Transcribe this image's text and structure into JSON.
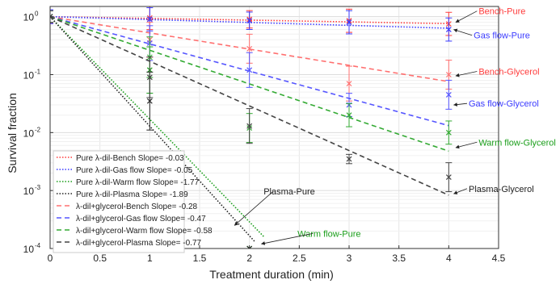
{
  "chart_data": {
    "type": "line",
    "xlabel": "Treatment duration (min)",
    "ylabel": "Survival fraction",
    "xlim": [
      0,
      4.5
    ],
    "ylim": [
      0.0001,
      1.5
    ],
    "yscale": "log",
    "grid": true,
    "legend_position": "lower-left",
    "x_ticks": [
      {
        "v": 0,
        "label": "0"
      },
      {
        "v": 0.5,
        "label": "0.5"
      },
      {
        "v": 1,
        "label": "1"
      },
      {
        "v": 1.5,
        "label": "1.5"
      },
      {
        "v": 2,
        "label": "2"
      },
      {
        "v": 2.5,
        "label": "2.5"
      },
      {
        "v": 3,
        "label": "3"
      },
      {
        "v": 3.5,
        "label": "3.5"
      },
      {
        "v": 4,
        "label": "4"
      },
      {
        "v": 4.5,
        "label": "4.5"
      }
    ],
    "y_ticks": [
      {
        "v": 1,
        "base": "10",
        "exp": "0"
      },
      {
        "v": 0.1,
        "base": "10",
        "exp": "-1"
      },
      {
        "v": 0.01,
        "base": "10",
        "exp": "-2"
      },
      {
        "v": 0.001,
        "base": "10",
        "exp": "-3"
      },
      {
        "v": 0.0001,
        "base": "10",
        "exp": "-4"
      }
    ],
    "series": [
      {
        "name": "Pure λ-dil-Bench Slope= -0.03",
        "color": "#ff3b3b",
        "dash": "dotted",
        "slope": -0.03,
        "x_end": 4,
        "points": [
          {
            "x": 0,
            "y": 1.0,
            "err": 0.12
          },
          {
            "x": 1,
            "y": 0.95,
            "err": 0.2
          },
          {
            "x": 2,
            "y": 0.9,
            "err": 0.15
          },
          {
            "x": 3,
            "y": 0.85,
            "err": 0.2
          },
          {
            "x": 4,
            "y": 0.75,
            "err": 0.2
          }
        ]
      },
      {
        "name": "Pure λ-dil-Gas flow Slope= -0.05",
        "color": "#3b3bff",
        "dash": "dotted",
        "slope": -0.05,
        "x_end": 4,
        "points": [
          {
            "x": 0,
            "y": 1.0,
            "err": 0.12
          },
          {
            "x": 1,
            "y": 0.9,
            "err": 0.2
          },
          {
            "x": 2,
            "y": 0.85,
            "err": 0.15
          },
          {
            "x": 3,
            "y": 0.8,
            "err": 0.2
          },
          {
            "x": 4,
            "y": 0.6,
            "err": 0.2
          }
        ]
      },
      {
        "name": "Pure λ-dil-Warm flow Slope= -1.77",
        "color": "#1a9e1a",
        "dash": "dotted",
        "slope": -1.77,
        "x_end": 2.15,
        "points": [
          {
            "x": 0,
            "y": 1.0,
            "err": 0.1
          },
          {
            "x": 1,
            "y": 0.12,
            "err": 0.4
          },
          {
            "x": 2,
            "y": 0.0001,
            "err": 0
          }
        ]
      },
      {
        "name": "Pure λ-dil-Plasma Slope= -1.89",
        "color": "#222222",
        "dash": "dotted",
        "slope": -1.89,
        "x_end": 2.05,
        "points": [
          {
            "x": 0,
            "y": 1.0,
            "err": 0.1
          },
          {
            "x": 1,
            "y": 0.035,
            "err": 0.5
          },
          {
            "x": 2,
            "y": 0.0001,
            "err": 0
          }
        ]
      },
      {
        "name": "λ-dil+glycerol-Bench Slope= -0.28",
        "color": "#ff7070",
        "dash": "dashed",
        "slope": -0.28,
        "x_end": 4,
        "points": [
          {
            "x": 0,
            "y": 1.0,
            "err": 0.1
          },
          {
            "x": 1,
            "y": 0.4,
            "err": 0.3
          },
          {
            "x": 2,
            "y": 0.28,
            "err": 0.25
          },
          {
            "x": 3,
            "y": 0.07,
            "err": 0.3
          },
          {
            "x": 4,
            "y": 0.1,
            "err": 0.25
          }
        ]
      },
      {
        "name": "λ-dil+glycerol-Gas flow Slope= -0.47",
        "color": "#5555ff",
        "dash": "dashed",
        "slope": -0.47,
        "x_end": 4,
        "points": [
          {
            "x": 0,
            "y": 1.0,
            "err": 0.1
          },
          {
            "x": 1,
            "y": 0.35,
            "err": 0.3
          },
          {
            "x": 2,
            "y": 0.12,
            "err": 0.3
          },
          {
            "x": 3,
            "y": 0.03,
            "err": 0.2
          },
          {
            "x": 4,
            "y": 0.045,
            "err": 0.25
          }
        ]
      },
      {
        "name": "λ-dil+glycerol-Warm flow Slope= -0.58",
        "color": "#33aa33",
        "dash": "dashed",
        "slope": -0.58,
        "x_end": 4,
        "points": [
          {
            "x": 0,
            "y": 1.0,
            "err": 0.1
          },
          {
            "x": 1,
            "y": 0.2,
            "err": 0.35
          },
          {
            "x": 2,
            "y": 0.012,
            "err": 0.25
          },
          {
            "x": 3,
            "y": 0.02,
            "err": 0.2
          },
          {
            "x": 4,
            "y": 0.01,
            "err": 0.2
          }
        ]
      },
      {
        "name": "λ-dil+glycerol-Plasma Slope= -0.77",
        "color": "#444444",
        "dash": "dashed",
        "slope": -0.77,
        "x_end": 4,
        "points": [
          {
            "x": 0,
            "y": 1.0,
            "err": 0.1
          },
          {
            "x": 1,
            "y": 0.09,
            "err": 0.35
          },
          {
            "x": 2,
            "y": 0.013,
            "err": 0.3
          },
          {
            "x": 3,
            "y": 0.0035,
            "err": 0.08
          },
          {
            "x": 4,
            "y": 0.0017,
            "err": 0.25
          }
        ]
      }
    ],
    "annotations": [
      {
        "text": "Bench-Pure",
        "color": "#ff3b3b",
        "x": 4.3,
        "y": 1.1,
        "anchor": "start",
        "arrow_to": [
          4.07,
          0.8
        ]
      },
      {
        "text": "Gas flow-Pure",
        "color": "#3b3bff",
        "x": 4.25,
        "y": 0.42,
        "anchor": "start",
        "arrow_to": [
          4.05,
          0.6
        ]
      },
      {
        "text": "Bench-Glycerol",
        "color": "#ff3b3b",
        "x": 4.3,
        "y": 0.1,
        "anchor": "start",
        "arrow_to": [
          4.07,
          0.095
        ]
      },
      {
        "text": "Gas flow-Glycerol",
        "color": "#3b3bff",
        "x": 4.2,
        "y": 0.028,
        "anchor": "start",
        "arrow_to": [
          4.05,
          0.03
        ]
      },
      {
        "text": "Warm flow-Glycerol",
        "color": "#1a9e1a",
        "x": 4.3,
        "y": 0.006,
        "anchor": "start",
        "arrow_to": [
          4.07,
          0.0055
        ]
      },
      {
        "text": "Plasma-Glycerol",
        "color": "#222222",
        "x": 4.2,
        "y": 0.00095,
        "anchor": "start",
        "arrow_to": [
          4.05,
          0.00088
        ]
      },
      {
        "text": "Plasma-Pure",
        "color": "#222222",
        "x": 2.4,
        "y": 0.00085,
        "anchor": "middle",
        "arrow_to": [
          1.85,
          0.00025
        ]
      },
      {
        "text": "Warm flow-Pure",
        "color": "#1a9e1a",
        "x": 2.8,
        "y": 0.00016,
        "anchor": "middle",
        "arrow_to": [
          2.12,
          0.00012
        ]
      }
    ]
  }
}
